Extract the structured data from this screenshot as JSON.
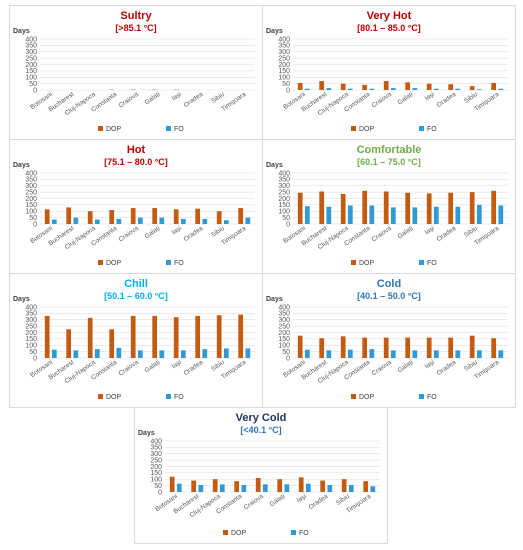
{
  "colors": {
    "dop": "#c55a11",
    "fo": "#2e9bd6",
    "grid": "#d9d9d9"
  },
  "chart_data": [
    {
      "type": "bar",
      "title": "Sultry",
      "subtitle": "[>85.1 °C]",
      "title_color": "#c00000",
      "subtitle_color": "#c00000",
      "ylabel": "Days",
      "ylim": [
        0,
        400
      ],
      "yticks": [
        0,
        50,
        100,
        150,
        200,
        250,
        300,
        350,
        400
      ],
      "categories": [
        "Botosani",
        "Bucharest",
        "Cluj-Napoca",
        "Constanta",
        "Craiova",
        "Galați",
        "Iași",
        "Oradea",
        "Sibiu",
        "Timișoara"
      ],
      "series": [
        {
          "name": "DOP",
          "values": [
            0,
            0,
            0,
            3,
            3,
            3,
            3,
            0,
            0,
            0
          ]
        },
        {
          "name": "FO",
          "values": [
            0,
            0,
            0,
            0,
            0,
            0,
            0,
            0,
            0,
            0
          ]
        }
      ],
      "legend": "bottom"
    },
    {
      "type": "bar",
      "title": "Very Hot",
      "subtitle": "[80.1 – 85.0 °C]",
      "title_color": "#c00000",
      "subtitle_color": "#c00000",
      "ylabel": "Days",
      "ylim": [
        0,
        400
      ],
      "yticks": [
        0,
        50,
        100,
        150,
        200,
        250,
        300,
        350,
        400
      ],
      "categories": [
        "Botosani",
        "Bucharest",
        "Cluj-Napoca",
        "Constanta",
        "Craiova",
        "Galați",
        "Iași",
        "Oradea",
        "Sibiu",
        "Timișoara"
      ],
      "series": [
        {
          "name": "DOP",
          "values": [
            55,
            70,
            50,
            40,
            70,
            60,
            50,
            45,
            30,
            55
          ]
        },
        {
          "name": "FO",
          "values": [
            10,
            15,
            10,
            10,
            15,
            15,
            10,
            10,
            5,
            10
          ]
        }
      ],
      "legend": "bottom"
    },
    {
      "type": "bar",
      "title": "Hot",
      "subtitle": "[75.1 – 80.0 °C]",
      "title_color": "#c00000",
      "subtitle_color": "#c00000",
      "ylabel": "Days",
      "ylim": [
        0,
        400
      ],
      "yticks": [
        0,
        50,
        100,
        150,
        200,
        250,
        300,
        350,
        400
      ],
      "categories": [
        "Botosani",
        "Bucharest",
        "Cluj-Napoca",
        "Constanta",
        "Craiova",
        "Galați",
        "Iași",
        "Oradea",
        "Sibiu",
        "Timișoara"
      ],
      "series": [
        {
          "name": "DOP",
          "values": [
            115,
            130,
            100,
            110,
            125,
            125,
            115,
            120,
            100,
            125
          ]
        },
        {
          "name": "FO",
          "values": [
            35,
            50,
            35,
            40,
            50,
            50,
            40,
            40,
            30,
            50
          ]
        }
      ],
      "legend": "bottom"
    },
    {
      "type": "bar",
      "title": "Comfortable",
      "subtitle": "[60.1 – 75.0 °C]",
      "title_color": "#70ad47",
      "subtitle_color": "#70ad47",
      "ylabel": "Days",
      "ylim": [
        0,
        400
      ],
      "yticks": [
        0,
        50,
        100,
        150,
        200,
        250,
        300,
        350,
        400
      ],
      "categories": [
        "Botosani",
        "Bucharest",
        "Cluj-Napoca",
        "Constanta",
        "Craiova",
        "Galați",
        "Iași",
        "Oradea",
        "Sibiu",
        "Timișoara"
      ],
      "series": [
        {
          "name": "DOP",
          "values": [
            245,
            255,
            235,
            260,
            255,
            245,
            240,
            245,
            250,
            260
          ]
        },
        {
          "name": "FO",
          "values": [
            140,
            135,
            145,
            145,
            130,
            130,
            135,
            135,
            150,
            145
          ]
        }
      ],
      "legend": "bottom"
    },
    {
      "type": "bar",
      "title": "Chill",
      "subtitle": "[50.1 – 60.0 °C]",
      "title_color": "#00b0f0",
      "subtitle_color": "#00b0f0",
      "ylabel": "Days",
      "ylim": [
        0,
        400
      ],
      "yticks": [
        0,
        50,
        100,
        150,
        200,
        250,
        300,
        350,
        400
      ],
      "categories": [
        "Botosani",
        "Bucharest",
        "Cluj-Napoca",
        "Constanta",
        "Craiova",
        "Galați",
        "Iași",
        "Oradea",
        "Sibiu",
        "Timișoara"
      ],
      "series": [
        {
          "name": "DOP",
          "values": [
            330,
            225,
            315,
            225,
            330,
            330,
            320,
            330,
            335,
            340
          ]
        },
        {
          "name": "FO",
          "values": [
            65,
            60,
            70,
            80,
            60,
            60,
            60,
            70,
            75,
            75
          ]
        }
      ],
      "legend": "bottom"
    },
    {
      "type": "bar",
      "title": "Cold",
      "subtitle": "[40.1 – 50.0 °C]",
      "title_color": "#2e75b6",
      "subtitle_color": "#2e75b6",
      "ylabel": "Days",
      "ylim": [
        0,
        400
      ],
      "yticks": [
        0,
        50,
        100,
        150,
        200,
        250,
        300,
        350,
        400
      ],
      "categories": [
        "Botosani",
        "Bucharest",
        "Cluj-Napoca",
        "Constanta",
        "Craiova",
        "Galați",
        "Iași",
        "Oradea",
        "Sibiu",
        "Timișoara"
      ],
      "series": [
        {
          "name": "DOP",
          "values": [
            175,
            155,
            170,
            160,
            160,
            160,
            160,
            160,
            175,
            155
          ]
        },
        {
          "name": "FO",
          "values": [
            65,
            60,
            65,
            70,
            60,
            60,
            60,
            60,
            60,
            60
          ]
        }
      ],
      "legend": "bottom"
    },
    {
      "type": "bar",
      "title": "Very Cold",
      "subtitle": "[<40.1 °C]",
      "title_color": "#1f3864",
      "subtitle_color": "#2e75b6",
      "ylabel": "Days",
      "ylim": [
        0,
        400
      ],
      "yticks": [
        0,
        50,
        100,
        150,
        200,
        250,
        300,
        350,
        400
      ],
      "categories": [
        "Botosani",
        "Bucharest",
        "Cluj-Napoca",
        "Constanta",
        "Craiova",
        "Galați",
        "Iași",
        "Oradea",
        "Sibiu",
        "Timișoara"
      ],
      "series": [
        {
          "name": "DOP",
          "values": [
            120,
            90,
            100,
            85,
            110,
            100,
            115,
            90,
            100,
            85
          ]
        },
        {
          "name": "FO",
          "values": [
            65,
            55,
            60,
            55,
            60,
            60,
            65,
            55,
            55,
            45
          ]
        }
      ],
      "legend": "bottom"
    }
  ]
}
